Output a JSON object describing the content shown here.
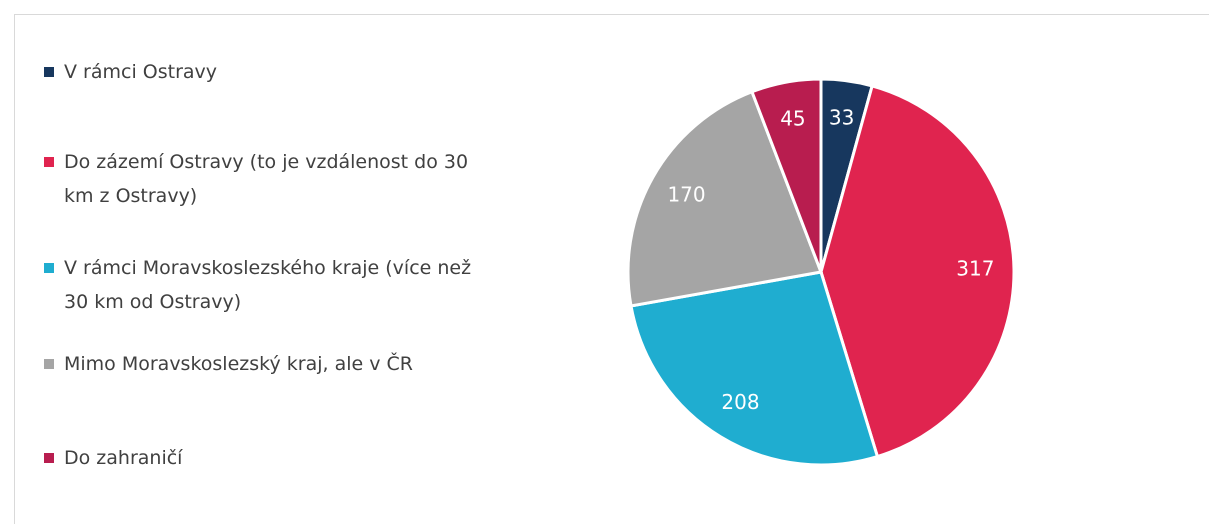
{
  "chart_data": {
    "type": "pie",
    "categories": [
      "V rámci Ostravy",
      "Do zázemí Ostravy (to je vzdálenost do 30 km z Ostravy)",
      "V rámci Moravskoslezského kraje (více než 30 km od Ostravy)",
      "Mimo Moravskoslezský kraj, ale v ČR",
      "Do zahraničí"
    ],
    "values": [
      33,
      317,
      208,
      170,
      45
    ],
    "colors": [
      "#17375e",
      "#e0244f",
      "#1fadd0",
      "#a5a5a5",
      "#b81d4f"
    ],
    "legend": "left"
  }
}
